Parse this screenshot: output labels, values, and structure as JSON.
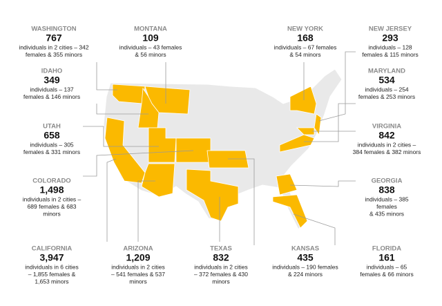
{
  "callouts": [
    {
      "state": "WASHINGTON",
      "count": "767",
      "lines": [
        "individuals in 2 cities – 342",
        "females & 355 minors"
      ]
    },
    {
      "state": "MONTANA",
      "count": "109",
      "lines": [
        "individuals – 43 females",
        "& 56 minors"
      ]
    },
    {
      "state": "NEW YORK",
      "count": "168",
      "lines": [
        "individuals – 67 females",
        "& 54 minors"
      ]
    },
    {
      "state": "NEW JERSEY",
      "count": "293",
      "lines": [
        "individuals – 128",
        "females & 115 minors"
      ]
    },
    {
      "state": "IDAHO",
      "count": "349",
      "lines": [
        "individuals – 137",
        "females & 146 minors"
      ]
    },
    {
      "state": "MARYLAND",
      "count": "534",
      "lines": [
        "individuals – 254",
        "females & 253 minors"
      ]
    },
    {
      "state": "UTAH",
      "count": "658",
      "lines": [
        "individuals – 305",
        "females & 331 minors"
      ]
    },
    {
      "state": "VIRGINIA",
      "count": "842",
      "lines": [
        "individuals in 2 cities –",
        "384 females & 382 minors"
      ]
    },
    {
      "state": "COLORADO",
      "count": "1,498",
      "lines": [
        "individuals in 2 cities –",
        "689 females & 683",
        "minors"
      ]
    },
    {
      "state": "GEORGIA",
      "count": "838",
      "lines": [
        "individuals – 385",
        "females",
        "& 435 minors"
      ]
    },
    {
      "state": "CALIFORNIA",
      "count": "3,947",
      "lines": [
        "individuals in 6 cities",
        "– 1,855 females &",
        "1,653 minors"
      ]
    },
    {
      "state": "ARIZONA",
      "count": "1,209",
      "lines": [
        "individuals in 2 cities",
        "– 541 females & 537",
        "minors"
      ]
    },
    {
      "state": "TEXAS",
      "count": "832",
      "lines": [
        "individuals in 2 cities",
        "– 372 females & 430",
        "minors"
      ]
    },
    {
      "state": "KANSAS",
      "count": "435",
      "lines": [
        "individuals – 190 females",
        "& 224 minors"
      ]
    },
    {
      "state": "FLORIDA",
      "count": "161",
      "lines": [
        "individuals – 65",
        "females & 66 minors"
      ]
    }
  ]
}
